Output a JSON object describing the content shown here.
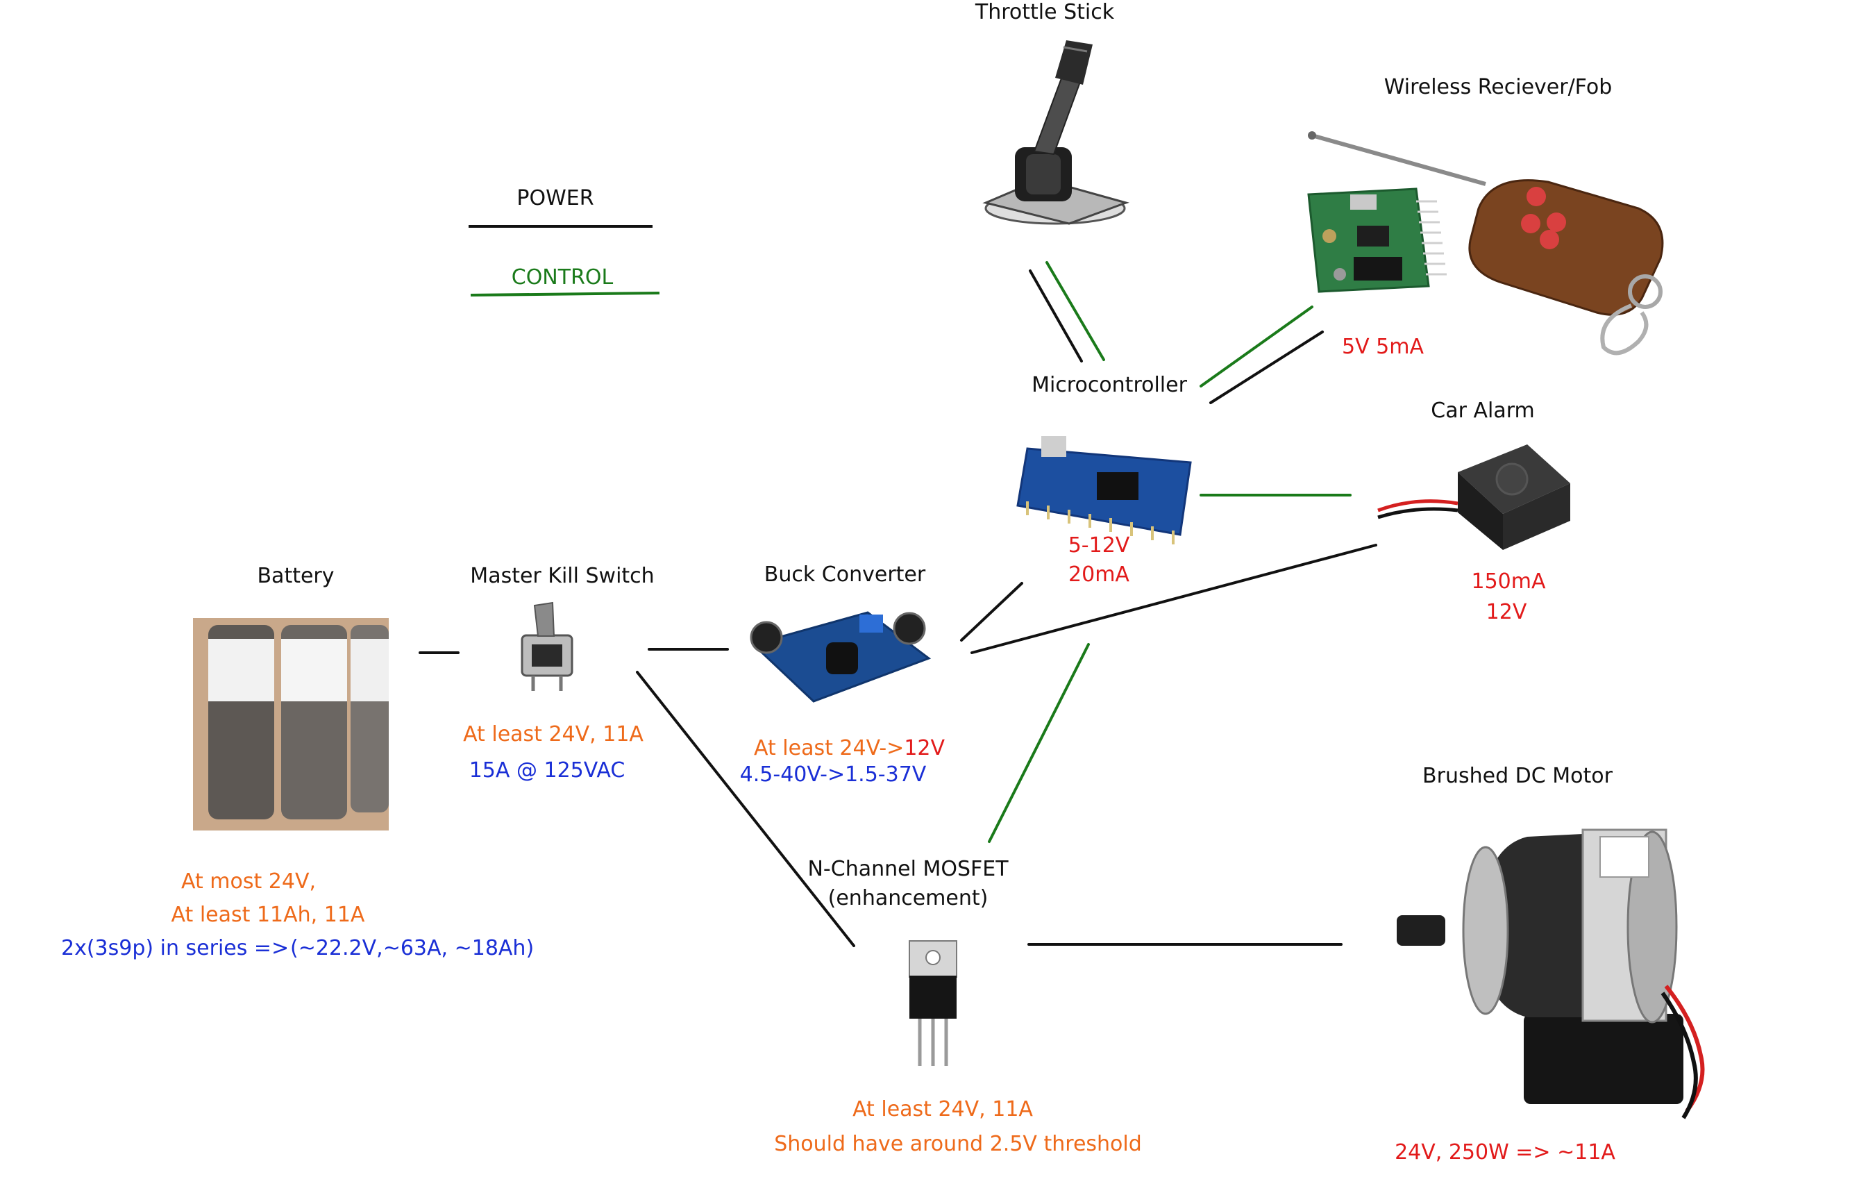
{
  "colors": {
    "power_line": "#111111",
    "control_line": "#1a7a1a",
    "note_orange": "#ee6a1a",
    "note_blue": "#1a2fd6",
    "note_red": "#e21a1a"
  },
  "legend": {
    "power": "POWER",
    "control": "CONTROL"
  },
  "components": {
    "throttle": {
      "title": "Throttle Stick"
    },
    "wireless": {
      "title": "Wireless Reciever/Fob",
      "spec": "5V 5mA"
    },
    "microcontroller": {
      "title": "Microcontroller",
      "spec1": "5-12V",
      "spec2": "20mA"
    },
    "car_alarm": {
      "title": "Car Alarm",
      "spec1": "150mA",
      "spec2": "12V"
    },
    "battery": {
      "title": "Battery",
      "note1": "At most   24V,",
      "note2": "At least 11Ah, 11A",
      "note3_a": "2x(3s9p) in series =>",
      "note3_b": "(~22.2V,~63A, ~18Ah)"
    },
    "kill_switch": {
      "title": "Master Kill Switch",
      "note1": "At least 24V, 11A",
      "note2": "15A @ 125VAC"
    },
    "buck": {
      "title": "Buck Converter",
      "note1_a": "At least 24V->",
      "note1_b": "12V",
      "note2": "4.5-40V->1.5-37V"
    },
    "mosfet": {
      "title1": "N-Channel MOSFET",
      "title2": "(enhancement)",
      "note1": "At least 24V, 11A",
      "note2": "Should have around 2.5V threshold"
    },
    "motor": {
      "title": "Brushed DC Motor",
      "spec": "24V, 250W => ~11A"
    }
  }
}
